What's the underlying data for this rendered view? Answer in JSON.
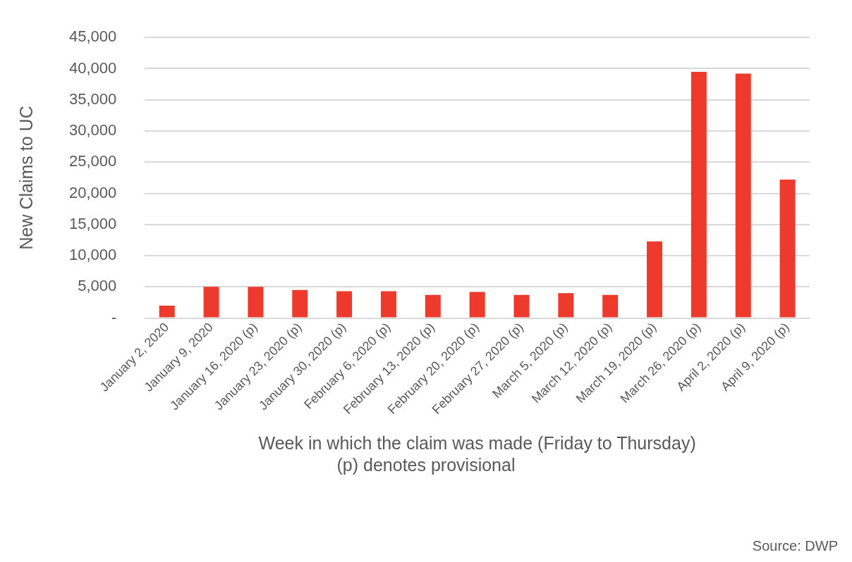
{
  "chart_data": {
    "type": "bar",
    "ylabel": "New Claims to UC",
    "xlabel": "Week in which the claim was made (Friday to Thursday)",
    "categories": [
      "January 2, 2020",
      "January 9, 2020",
      "January 16, 2020 (p)",
      "January 23, 2020 (p)",
      "January 30, 2020 (p)",
      "February 6, 2020 (p)",
      "February 13, 2020 (p)",
      "February 20, 2020 (p)",
      "February 27, 2020 (p)",
      "March 5, 2020 (p)",
      "March 12, 2020 (p)",
      "March 19, 2020 (p)",
      "March 26, 2020 (p)",
      "April 2, 2020 (p)",
      "April 9, 2020 (p)"
    ],
    "values": [
      2000,
      5000,
      5000,
      4500,
      4300,
      4300,
      3700,
      4200,
      3700,
      4000,
      3700,
      12300,
      39500,
      39200,
      22200
    ],
    "color": "#ee3a2c",
    "ylim": [
      0,
      45000
    ],
    "yticks": [
      {
        "value": 0,
        "label": "-"
      },
      {
        "value": 5000,
        "label": "5,000"
      },
      {
        "value": 10000,
        "label": "10,000"
      },
      {
        "value": 15000,
        "label": "15,000"
      },
      {
        "value": 20000,
        "label": "20,000"
      },
      {
        "value": 25000,
        "label": "25,000"
      },
      {
        "value": 30000,
        "label": "30,000"
      },
      {
        "value": 35000,
        "label": "35,000"
      },
      {
        "value": 40000,
        "label": "40,000"
      },
      {
        "value": 45000,
        "label": "45,000"
      }
    ],
    "grid": "y",
    "legend": false,
    "annotations": [
      "(p) denotes provisional",
      "Source: DWP"
    ]
  }
}
